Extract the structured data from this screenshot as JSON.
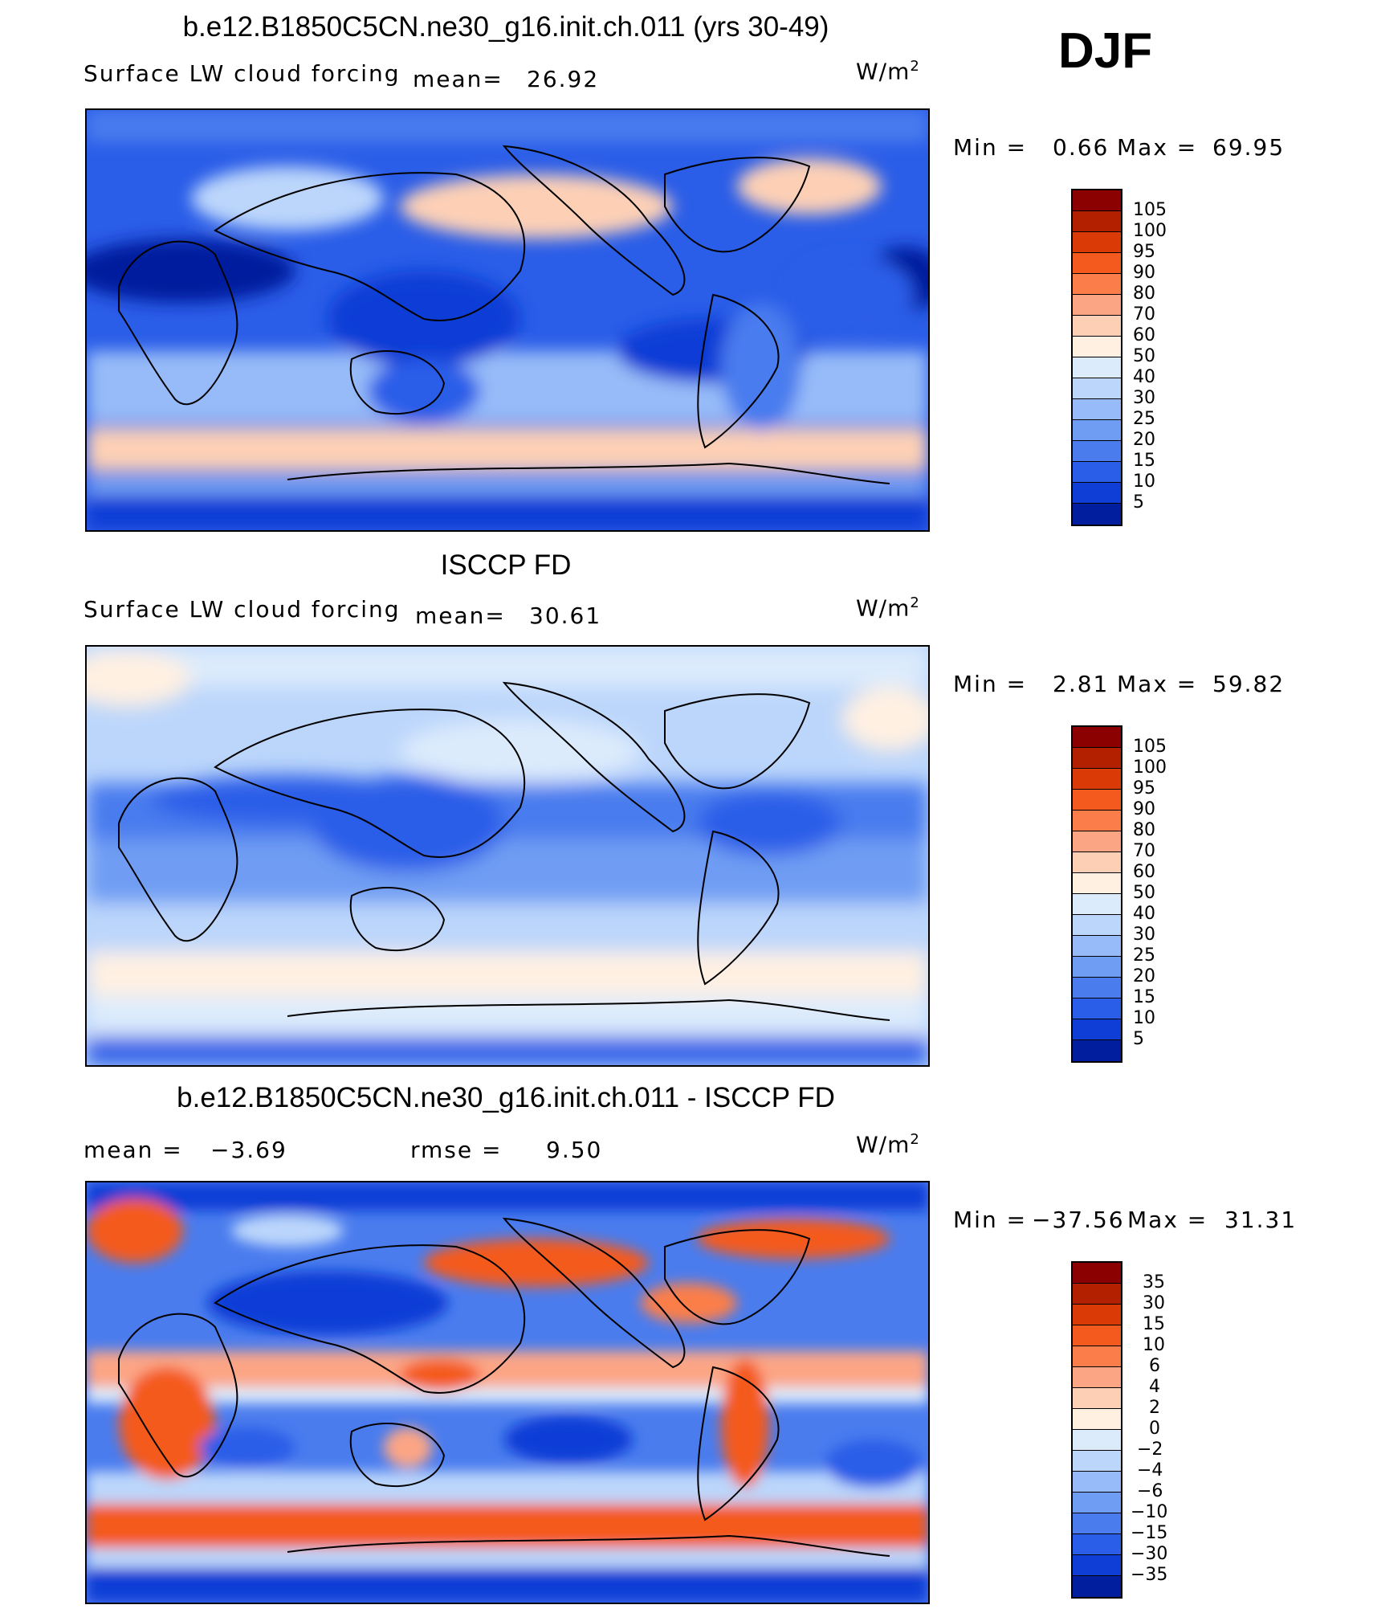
{
  "season": "DJF",
  "units_base": "W/m",
  "units_exp": "2",
  "panels": [
    {
      "title": "b.e12.B1850C5CN.ne30_g16.init.ch.011 (yrs 30-49)",
      "left_text": "Surface LW cloud forcing",
      "mean_label": "mean=",
      "mean_value": "26.92",
      "rmse_label": "",
      "rmse_value": "",
      "min_label": "Min =",
      "min_value": "0.66",
      "max_label": "Max =",
      "max_value": "69.95",
      "colorbar_labels": [
        "105",
        "100",
        "95",
        "90",
        "80",
        "70",
        "60",
        "50",
        "40",
        "30",
        "25",
        "20",
        "15",
        "10",
        "5"
      ]
    },
    {
      "title": "ISCCP FD",
      "left_text": "Surface LW cloud forcing",
      "mean_label": "mean=",
      "mean_value": "30.61",
      "rmse_label": "",
      "rmse_value": "",
      "min_label": "Min =",
      "min_value": "2.81",
      "max_label": "Max =",
      "max_value": "59.82",
      "colorbar_labels": [
        "105",
        "100",
        "95",
        "90",
        "80",
        "70",
        "60",
        "50",
        "40",
        "30",
        "25",
        "20",
        "15",
        "10",
        "5"
      ]
    },
    {
      "title": "b.e12.B1850C5CN.ne30_g16.init.ch.011 - ISCCP FD",
      "left_text": "",
      "mean_label": "mean =",
      "mean_value": "−3.69",
      "rmse_label": "rmse =",
      "rmse_value": "9.50",
      "min_label": "Min =",
      "min_value": "−37.56",
      "max_label": "Max =",
      "max_value": "31.31",
      "colorbar_labels": [
        "35",
        "30",
        "15",
        "10",
        "6",
        "4",
        "2",
        "0",
        "−2",
        "−4",
        "−6",
        "−10",
        "−15",
        "−30",
        "−35"
      ]
    }
  ],
  "colorbar_colors": [
    "#8b0000",
    "#b22000",
    "#d93a06",
    "#f45a1e",
    "#fb7e4a",
    "#fca585",
    "#fdd0b6",
    "#fff0e2",
    "#dcebfc",
    "#bcd6fb",
    "#97bbf8",
    "#6f9df3",
    "#4a7cee",
    "#2a5de8",
    "#0e3ed6",
    "#001e9e"
  ]
}
